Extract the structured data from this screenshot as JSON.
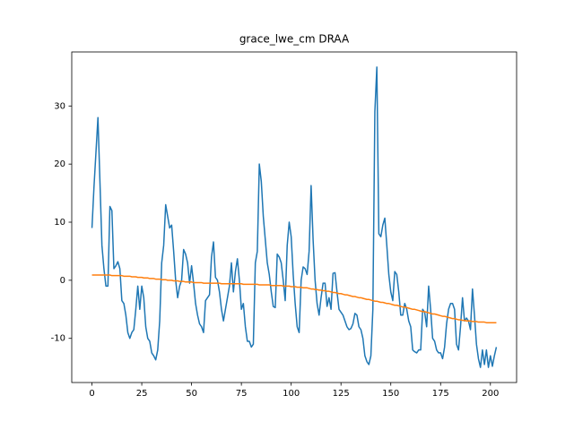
{
  "chart_data": {
    "type": "line",
    "title": "grace_lwe_cm DRAA",
    "x": [
      0,
      1,
      2,
      3,
      4,
      5,
      6,
      7,
      8,
      9,
      10,
      11,
      12,
      13,
      14,
      15,
      16,
      17,
      18,
      19,
      20,
      21,
      22,
      23,
      24,
      25,
      26,
      27,
      28,
      29,
      30,
      31,
      32,
      33,
      34,
      35,
      36,
      37,
      38,
      39,
      40,
      41,
      42,
      43,
      44,
      45,
      46,
      47,
      48,
      49,
      50,
      51,
      52,
      53,
      54,
      55,
      56,
      57,
      58,
      59,
      60,
      61,
      62,
      63,
      64,
      65,
      66,
      67,
      68,
      69,
      70,
      71,
      72,
      73,
      74,
      75,
      76,
      77,
      78,
      79,
      80,
      81,
      82,
      83,
      84,
      85,
      86,
      87,
      88,
      89,
      90,
      91,
      92,
      93,
      94,
      95,
      96,
      97,
      98,
      99,
      100,
      101,
      102,
      103,
      104,
      105,
      106,
      107,
      108,
      109,
      110,
      111,
      112,
      113,
      114,
      115,
      116,
      117,
      118,
      119,
      120,
      121,
      122,
      123,
      124,
      125,
      126,
      127,
      128,
      129,
      130,
      131,
      132,
      133,
      134,
      135,
      136,
      137,
      138,
      139,
      140,
      141,
      142,
      143,
      144,
      145,
      146,
      147,
      148,
      149,
      150,
      151,
      152,
      153,
      154,
      155,
      156,
      157,
      158,
      159,
      160,
      161,
      162,
      163,
      164,
      165,
      166,
      167,
      168,
      169,
      170,
      171,
      172,
      173,
      174,
      175,
      176,
      177,
      178,
      179,
      180,
      181,
      182,
      183,
      184,
      185,
      186,
      187,
      188,
      189,
      190,
      191,
      192,
      193,
      194,
      195,
      196,
      197,
      198,
      199,
      200,
      201,
      202,
      203
    ],
    "series": [
      {
        "color": "#1f77b4",
        "values": [
          9,
          16,
          22,
          28,
          17,
          6,
          2,
          -1,
          -1,
          12.7,
          12,
          2,
          2.5,
          3.2,
          2,
          -3.5,
          -4,
          -6,
          -9,
          -10,
          -9,
          -8.5,
          -5,
          -1,
          -5,
          -1,
          -3,
          -8,
          -10,
          -10.5,
          -12.5,
          -13,
          -13.7,
          -12,
          -7,
          3,
          6,
          13,
          11,
          9,
          9.5,
          5,
          0,
          -3,
          -1,
          0,
          5.3,
          4.5,
          3,
          -0.5,
          2.5,
          -0.5,
          -4,
          -6,
          -7.5,
          -8,
          -9,
          -3.5,
          -3,
          -2.5,
          4,
          6.6,
          0.5,
          0,
          -2,
          -5,
          -7,
          -5,
          -3,
          -1,
          3,
          -2,
          1.5,
          3.7,
          0,
          -5,
          -4,
          -8,
          -10.5,
          -10.5,
          -11.5,
          -11,
          3,
          5,
          20,
          17,
          11,
          7,
          3,
          1,
          -2,
          -4.5,
          -4.7,
          4.5,
          4,
          3,
          0,
          -3.5,
          6,
          10,
          7.5,
          1,
          -4,
          -8,
          -9,
          0,
          2.3,
          2,
          1,
          5,
          16.3,
          7,
          0,
          -4,
          -6,
          -3,
          -0.5,
          -0.5,
          -4.5,
          -3,
          -5,
          1.2,
          1.3,
          -2,
          -5,
          -5.5,
          -6,
          -7,
          -8,
          -8.5,
          -8.3,
          -7.5,
          -5.7,
          -6,
          -8,
          -8.5,
          -10,
          -13,
          -14,
          -14.5,
          -13,
          -5,
          29,
          36.7,
          8,
          7.5,
          9.5,
          10.7,
          6,
          1,
          -2,
          -3.5,
          1.5,
          1,
          -2,
          -6,
          -6,
          -4,
          -5,
          -7,
          -8,
          -12,
          -12.3,
          -12.5,
          -12,
          -12,
          -5,
          -5.5,
          -8,
          -1,
          -5,
          -10,
          -10.5,
          -12,
          -12.5,
          -12.5,
          -13.5,
          -11.5,
          -7.5,
          -5,
          -4,
          -4,
          -5,
          -11,
          -12,
          -8,
          -3,
          -7,
          -6.5,
          -7,
          -8.5,
          -1.5,
          -6,
          -11,
          -13.5,
          -15,
          -12,
          -14.5,
          -12,
          -15,
          -13,
          -14.8,
          -13,
          -11.5
        ]
      },
      {
        "color": "#ff7f0e",
        "values": [
          0.9,
          0.9,
          0.9,
          0.9,
          0.9,
          0.9,
          0.9,
          0.9,
          0.9,
          0.9,
          0.8,
          0.8,
          0.8,
          0.8,
          0.8,
          0.8,
          0.7,
          0.7,
          0.7,
          0.7,
          0.6,
          0.6,
          0.6,
          0.5,
          0.5,
          0.5,
          0.4,
          0.4,
          0.4,
          0.3,
          0.3,
          0.3,
          0.2,
          0.2,
          0.2,
          0.1,
          0.1,
          0.1,
          0.0,
          0.0,
          0.0,
          -0.1,
          -0.1,
          -0.1,
          -0.2,
          -0.2,
          -0.2,
          -0.3,
          -0.3,
          -0.3,
          -0.3,
          -0.4,
          -0.4,
          -0.4,
          -0.4,
          -0.4,
          -0.5,
          -0.5,
          -0.5,
          -0.5,
          -0.5,
          -0.5,
          -0.5,
          -0.5,
          -0.5,
          -0.6,
          -0.6,
          -0.6,
          -0.6,
          -0.6,
          -0.6,
          -0.6,
          -0.6,
          -0.6,
          -0.6,
          -0.6,
          -0.7,
          -0.7,
          -0.7,
          -0.7,
          -0.7,
          -0.7,
          -0.7,
          -0.7,
          -0.8,
          -0.8,
          -0.8,
          -0.8,
          -0.8,
          -0.8,
          -0.9,
          -0.9,
          -0.9,
          -0.9,
          -0.9,
          -0.9,
          -1.0,
          -1.0,
          -1.0,
          -1.0,
          -1.1,
          -1.1,
          -1.1,
          -1.2,
          -1.2,
          -1.2,
          -1.3,
          -1.3,
          -1.3,
          -1.4,
          -1.5,
          -1.5,
          -1.6,
          -1.6,
          -1.7,
          -1.7,
          -1.8,
          -1.8,
          -1.9,
          -1.9,
          -2.0,
          -2.1,
          -2.1,
          -2.2,
          -2.3,
          -2.3,
          -2.4,
          -2.5,
          -2.5,
          -2.6,
          -2.7,
          -2.8,
          -2.8,
          -2.9,
          -3.0,
          -3.0,
          -3.1,
          -3.2,
          -3.3,
          -3.3,
          -3.4,
          -3.5,
          -3.6,
          -3.6,
          -3.7,
          -3.8,
          -3.8,
          -3.9,
          -4.0,
          -4.0,
          -4.1,
          -4.2,
          -4.3,
          -4.3,
          -4.4,
          -4.5,
          -4.6,
          -4.6,
          -4.7,
          -4.8,
          -4.9,
          -5.0,
          -5.0,
          -5.1,
          -5.2,
          -5.3,
          -5.4,
          -5.4,
          -5.5,
          -5.6,
          -5.7,
          -5.8,
          -5.8,
          -5.9,
          -6.0,
          -6.1,
          -6.2,
          -6.2,
          -6.3,
          -6.4,
          -6.5,
          -6.6,
          -6.6,
          -6.7,
          -6.8,
          -6.8,
          -6.9,
          -6.9,
          -7.0,
          -7.0,
          -7.0,
          -7.1,
          -7.1,
          -7.1,
          -7.2,
          -7.2,
          -7.2,
          -7.2,
          -7.3,
          -7.3,
          -7.3,
          -7.3,
          -7.3,
          -7.3
        ]
      }
    ],
    "xlim": [
      -10.15,
      213.15
    ],
    "xticks": [
      0,
      25,
      50,
      75,
      100,
      125,
      150,
      175,
      200
    ],
    "ylim": [
      -17.6,
      39.3
    ],
    "yticks": [
      -10,
      0,
      10,
      20,
      30
    ]
  }
}
